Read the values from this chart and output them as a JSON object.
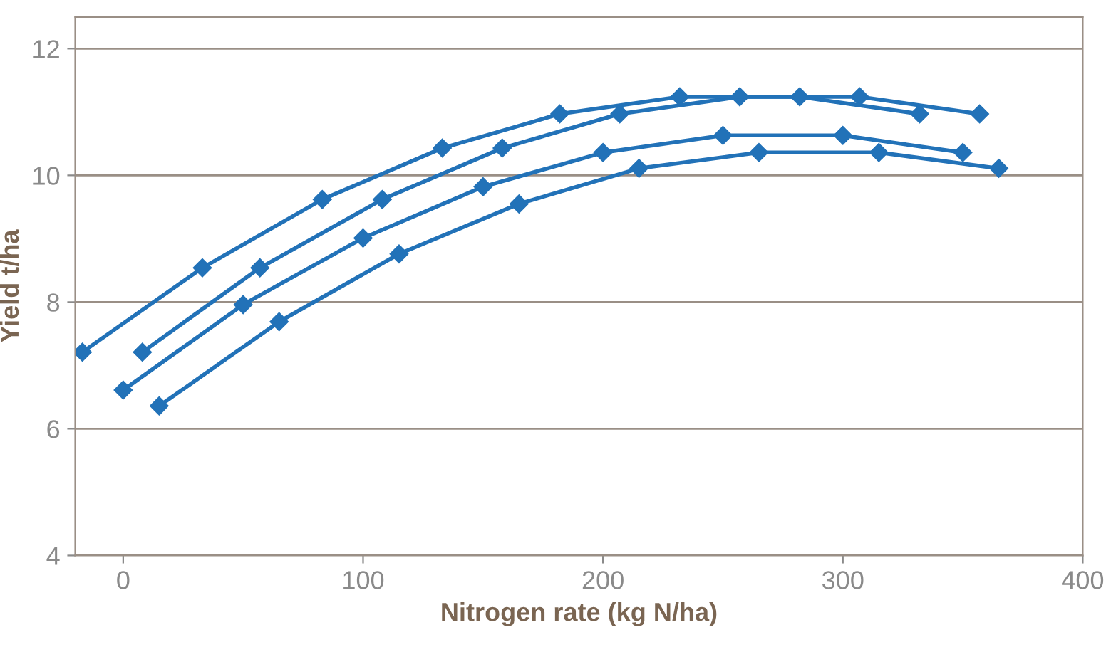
{
  "chart_data": {
    "type": "line",
    "xlabel": "Nitrogen rate (kg N/ha)",
    "ylabel": "Yield t/ha",
    "xlim": [
      -20,
      400
    ],
    "ylim": [
      4,
      12.5
    ],
    "xticks": [
      0,
      100,
      200,
      300,
      400
    ],
    "yticks": [
      4,
      6,
      8,
      10,
      12
    ],
    "grid": "y",
    "marker": "diamond",
    "line_style": "solid",
    "series": [
      {
        "color": "#2272b8",
        "x": [
          -17,
          33,
          83,
          133,
          182,
          232,
          282,
          332
        ],
        "values": [
          7.21,
          8.54,
          9.62,
          10.43,
          10.97,
          11.24,
          11.24,
          10.97
        ]
      },
      {
        "color": "#2272b8",
        "x": [
          8,
          57,
          108,
          158,
          207,
          257,
          307,
          357
        ],
        "values": [
          7.21,
          8.54,
          9.62,
          10.43,
          10.97,
          11.24,
          11.24,
          10.97
        ]
      },
      {
        "color": "#2272b8",
        "x": [
          0,
          50,
          100,
          150,
          200,
          250,
          300,
          350
        ],
        "values": [
          6.61,
          7.96,
          9.01,
          9.82,
          10.36,
          10.63,
          10.63,
          10.36
        ]
      },
      {
        "color": "#2272b8",
        "x": [
          15,
          65,
          115,
          165,
          215,
          265,
          315,
          365
        ],
        "values": [
          6.36,
          7.69,
          8.76,
          9.55,
          10.11,
          10.36,
          10.36,
          10.11
        ]
      }
    ]
  }
}
